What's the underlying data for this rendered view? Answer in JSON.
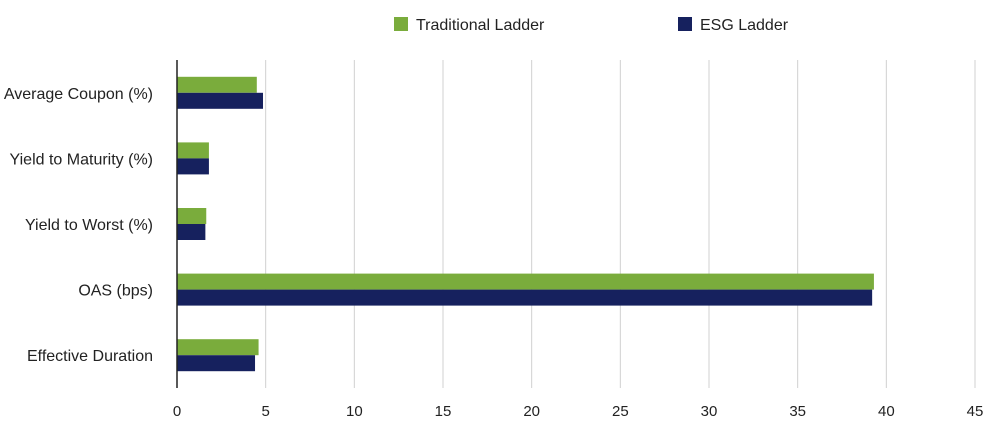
{
  "chart_data": {
    "type": "bar",
    "orientation": "horizontal",
    "title": "",
    "xlabel": "",
    "ylabel": "",
    "categories": [
      "Average Coupon (%)",
      "Yield to Maturity (%)",
      "Yield to Worst (%)",
      "OAS (bps)",
      "Effective Duration"
    ],
    "series": [
      {
        "name": "Traditional Ladder",
        "color": "#7aac3c",
        "values": [
          4.5,
          1.8,
          1.65,
          39.3,
          4.6
        ]
      },
      {
        "name": "ESG Ladder",
        "color": "#16215e",
        "values": [
          4.85,
          1.8,
          1.6,
          39.2,
          4.4
        ]
      }
    ],
    "xlim": [
      0,
      45
    ],
    "xticks": [
      "0",
      "5",
      "10",
      "15",
      "20",
      "25",
      "30",
      "35",
      "40",
      "45"
    ],
    "grid": "vertical",
    "legend": "top-center"
  }
}
